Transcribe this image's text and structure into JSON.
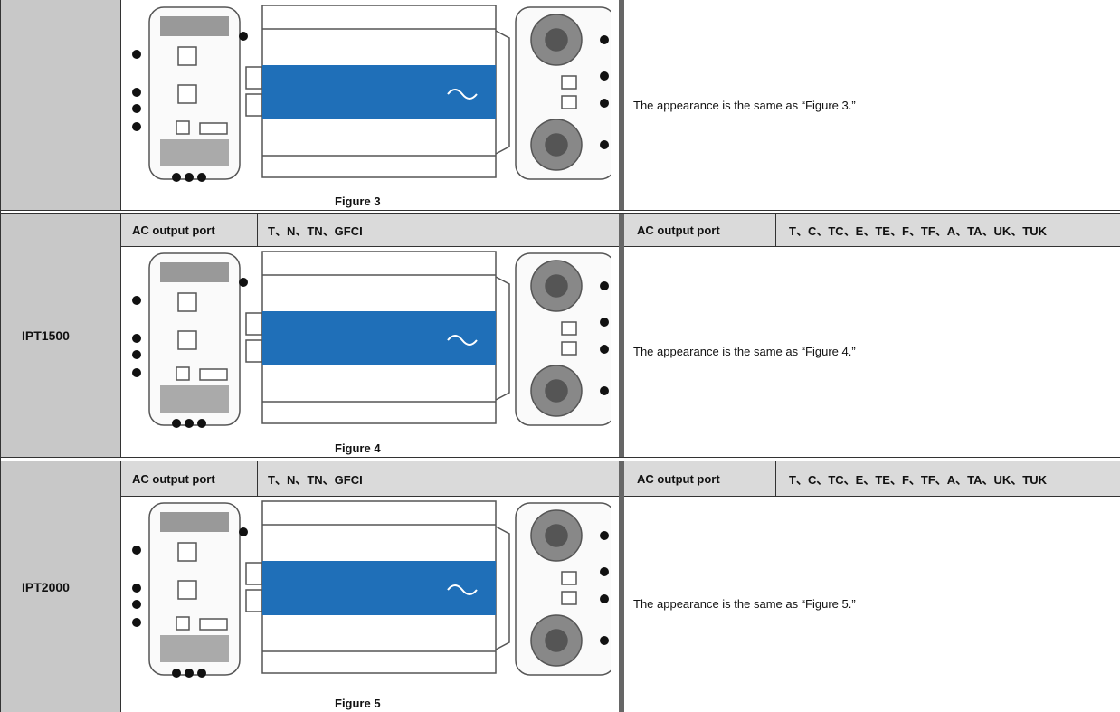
{
  "sections": [
    {
      "figure_caption": "Figure 3",
      "note": "The appearance is the same as “Figure 3.”"
    },
    {
      "model": "IPT1500",
      "left_header": {
        "label": "AC output port",
        "value": "T、N、TN、GFCI"
      },
      "right_header": {
        "label": "AC output port",
        "value": "T、C、TC、E、TE、F、TF、A、TA、UK、TUK"
      },
      "figure_caption": "Figure 4",
      "note": "The appearance is the same as “Figure 4.”"
    },
    {
      "model": "IPT2000",
      "left_header": {
        "label": "AC output port",
        "value": "T、N、TN、GFCI"
      },
      "right_header": {
        "label": "AC output port",
        "value": "T、C、TC、E、TE、F、TF、A、TA、UK、TUK"
      },
      "figure_caption": "Figure 5",
      "note": "The appearance is the same as “Figure 5.”"
    }
  ]
}
